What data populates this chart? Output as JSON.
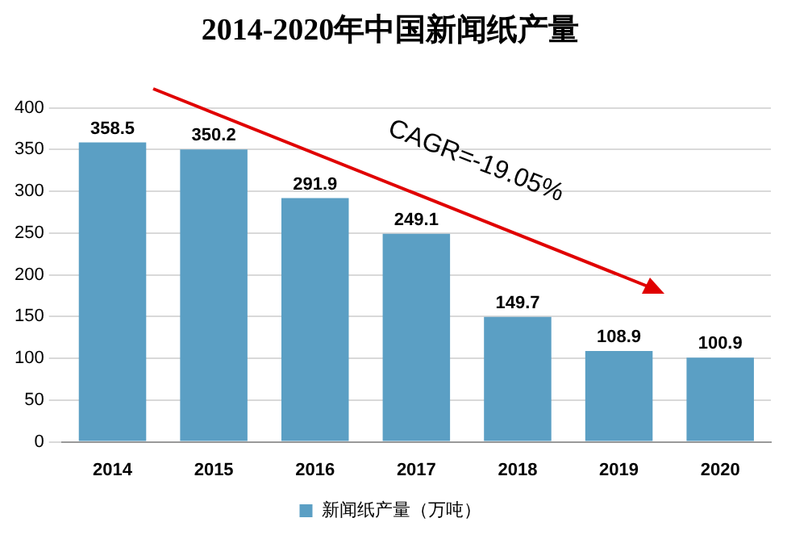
{
  "chart_data": {
    "type": "bar",
    "title": "2014-2020年中国新闻纸产量",
    "categories": [
      "2014",
      "2015",
      "2016",
      "2017",
      "2018",
      "2019",
      "2020"
    ],
    "series": [
      {
        "name": "新闻纸产量（万吨）",
        "color": "#5b9fc4",
        "values": [
          358.5,
          350.2,
          291.9,
          249.1,
          149.7,
          108.9,
          100.9
        ]
      }
    ],
    "ylim": [
      0,
      400
    ],
    "yticks": [
      0,
      50,
      100,
      150,
      200,
      250,
      300,
      350,
      400
    ],
    "grid": "y",
    "legend": "bottom",
    "data_labels": true,
    "annotations": [
      "CAGR=-19.05%"
    ]
  }
}
